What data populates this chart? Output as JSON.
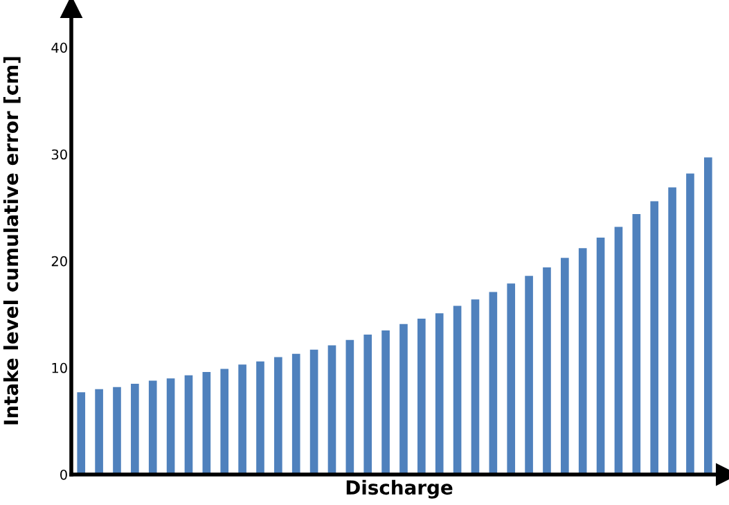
{
  "chart_data": {
    "type": "bar",
    "xlabel": "Discharge",
    "ylabel": "Intake level cumulative error [cm]",
    "categories": [
      null,
      null,
      null,
      null,
      null,
      null,
      null,
      null,
      null,
      null,
      null,
      null,
      null,
      null,
      null,
      null,
      null,
      null,
      null,
      null,
      null,
      null,
      null,
      null,
      null,
      null,
      null,
      null,
      null,
      null,
      null,
      null,
      null,
      null,
      null,
      null
    ],
    "values": [
      7.7,
      8.0,
      8.2,
      8.5,
      8.8,
      9.0,
      9.3,
      9.6,
      9.9,
      10.3,
      10.6,
      11.0,
      11.3,
      11.7,
      12.1,
      12.6,
      13.1,
      13.5,
      14.1,
      14.6,
      15.1,
      15.8,
      16.4,
      17.1,
      17.9,
      18.6,
      19.4,
      20.3,
      21.2,
      22.2,
      23.2,
      24.4,
      25.6,
      26.9,
      28.2,
      29.7
    ],
    "color": "#4f81bd",
    "ylim": [
      0,
      43.8
    ],
    "yticks": [
      0,
      10,
      20,
      30,
      40
    ],
    "grid": false
  }
}
